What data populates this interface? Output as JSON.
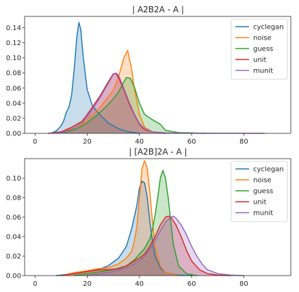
{
  "figure_background": "#ffffff",
  "chart_data": [
    {
      "type": "area",
      "title": "| A2B2A - A |",
      "xlabel": "",
      "ylabel": "",
      "xlim": [
        -4,
        98
      ],
      "ylim": [
        0,
        0.155
      ],
      "xticks": [
        0,
        20,
        40,
        60,
        80
      ],
      "yticks": [
        0.0,
        0.02,
        0.04,
        0.06,
        0.08,
        0.1,
        0.12,
        0.14
      ],
      "grid": false,
      "legend_position": "upper right",
      "fill_opacity": 0.25,
      "series": [
        {
          "name": "cyclegan",
          "color": "#1f77b4",
          "x": [
            6,
            8,
            10,
            11,
            12,
            13,
            14,
            15,
            16,
            16.8,
            17.5,
            18.5,
            20,
            22,
            25,
            28,
            32,
            36,
            40
          ],
          "y": [
            0,
            0.003,
            0.01,
            0.017,
            0.028,
            0.035,
            0.05,
            0.085,
            0.128,
            0.147,
            0.138,
            0.1,
            0.058,
            0.036,
            0.024,
            0.014,
            0.006,
            0.002,
            0
          ]
        },
        {
          "name": "noise",
          "color": "#ff7f0e",
          "x": [
            5,
            10,
            14,
            18,
            20,
            22,
            25,
            28,
            30,
            32,
            34,
            35.5,
            37,
            38,
            40,
            42,
            45,
            50
          ],
          "y": [
            0,
            0.002,
            0.006,
            0.012,
            0.018,
            0.024,
            0.035,
            0.048,
            0.057,
            0.075,
            0.1,
            0.11,
            0.085,
            0.06,
            0.025,
            0.008,
            0.002,
            0
          ]
        },
        {
          "name": "guess",
          "color": "#2ca02c",
          "x": [
            8,
            12,
            16,
            20,
            24,
            28,
            30,
            32,
            34,
            35,
            36.5,
            38,
            40,
            42,
            45,
            48,
            50,
            55,
            60,
            65
          ],
          "y": [
            0,
            0.002,
            0.006,
            0.014,
            0.025,
            0.038,
            0.046,
            0.055,
            0.068,
            0.074,
            0.073,
            0.062,
            0.04,
            0.025,
            0.018,
            0.012,
            0.004,
            0.001,
            0.0005,
            0
          ]
        },
        {
          "name": "unit",
          "color": "#d62728",
          "x": [
            5,
            10,
            14,
            18,
            20,
            22,
            25,
            28,
            30,
            31,
            32,
            34,
            36,
            38,
            40,
            42,
            45,
            50
          ],
          "y": [
            0,
            0.002,
            0.008,
            0.016,
            0.025,
            0.035,
            0.05,
            0.068,
            0.079,
            0.079,
            0.074,
            0.058,
            0.04,
            0.025,
            0.012,
            0.005,
            0.002,
            0
          ]
        },
        {
          "name": "munit",
          "color": "#9467bd",
          "x": [
            5,
            10,
            14,
            18,
            20,
            22,
            25,
            28,
            30,
            31,
            32,
            34,
            36,
            38,
            40,
            42,
            45,
            50,
            60,
            70,
            80,
            88
          ],
          "y": [
            0,
            0.001,
            0.005,
            0.014,
            0.022,
            0.032,
            0.048,
            0.066,
            0.078,
            0.08,
            0.077,
            0.06,
            0.042,
            0.026,
            0.013,
            0.006,
            0.002,
            0.0005,
            0.0002,
            0.0001,
            0.0001,
            0
          ]
        }
      ]
    },
    {
      "type": "area",
      "title": "| [A2B]2A - A |",
      "xlabel": "",
      "ylabel": "",
      "xlim": [
        -4,
        98
      ],
      "ylim": [
        0,
        0.12
      ],
      "xticks": [
        0,
        20,
        40,
        60,
        80
      ],
      "yticks": [
        0.0,
        0.02,
        0.04,
        0.06,
        0.08,
        0.1
      ],
      "grid": false,
      "legend_position": "upper right",
      "fill_opacity": 0.25,
      "series": [
        {
          "name": "cyclegan",
          "color": "#1f77b4",
          "x": [
            8,
            15,
            20,
            24,
            28,
            32,
            35,
            37,
            39,
            40,
            41,
            42,
            43,
            44,
            45,
            46,
            48,
            50,
            55,
            60
          ],
          "y": [
            0,
            0.002,
            0.004,
            0.006,
            0.01,
            0.018,
            0.03,
            0.048,
            0.072,
            0.09,
            0.097,
            0.095,
            0.08,
            0.055,
            0.035,
            0.02,
            0.008,
            0.003,
            0.0005,
            0
          ]
        },
        {
          "name": "noise",
          "color": "#ff7f0e",
          "x": [
            10,
            15,
            20,
            24,
            28,
            32,
            35,
            37,
            38,
            39,
            40,
            41,
            42,
            43,
            44,
            45,
            46,
            48,
            50,
            55
          ],
          "y": [
            0,
            0.003,
            0.005,
            0.007,
            0.008,
            0.012,
            0.018,
            0.025,
            0.035,
            0.05,
            0.08,
            0.11,
            0.118,
            0.11,
            0.085,
            0.055,
            0.03,
            0.01,
            0.003,
            0
          ]
        },
        {
          "name": "guess",
          "color": "#2ca02c",
          "x": [
            15,
            20,
            25,
            30,
            35,
            38,
            40,
            42,
            44,
            45,
            46,
            47,
            48,
            49,
            50,
            51,
            52,
            53,
            55,
            58,
            62
          ],
          "y": [
            0,
            0.002,
            0.004,
            0.006,
            0.01,
            0.016,
            0.022,
            0.028,
            0.038,
            0.048,
            0.062,
            0.08,
            0.1,
            0.108,
            0.1,
            0.08,
            0.055,
            0.032,
            0.01,
            0.002,
            0
          ]
        },
        {
          "name": "unit",
          "color": "#d62728",
          "x": [
            10,
            15,
            20,
            25,
            28,
            32,
            35,
            38,
            40,
            42,
            44,
            46,
            48,
            50,
            51,
            52,
            54,
            56,
            58,
            60,
            63,
            66,
            70,
            75
          ],
          "y": [
            0,
            0.002,
            0.004,
            0.006,
            0.006,
            0.007,
            0.01,
            0.015,
            0.018,
            0.022,
            0.03,
            0.04,
            0.052,
            0.06,
            0.061,
            0.06,
            0.052,
            0.04,
            0.026,
            0.015,
            0.006,
            0.002,
            0.0005,
            0
          ]
        },
        {
          "name": "munit",
          "color": "#9467bd",
          "x": [
            20,
            25,
            30,
            35,
            38,
            40,
            42,
            44,
            46,
            48,
            50,
            52,
            53,
            54,
            56,
            58,
            60,
            62,
            64,
            66,
            70,
            75,
            80
          ],
          "y": [
            0,
            0.002,
            0.004,
            0.008,
            0.012,
            0.015,
            0.02,
            0.027,
            0.036,
            0.046,
            0.055,
            0.06,
            0.061,
            0.059,
            0.052,
            0.042,
            0.03,
            0.02,
            0.012,
            0.006,
            0.002,
            0.0005,
            0
          ]
        }
      ]
    }
  ]
}
